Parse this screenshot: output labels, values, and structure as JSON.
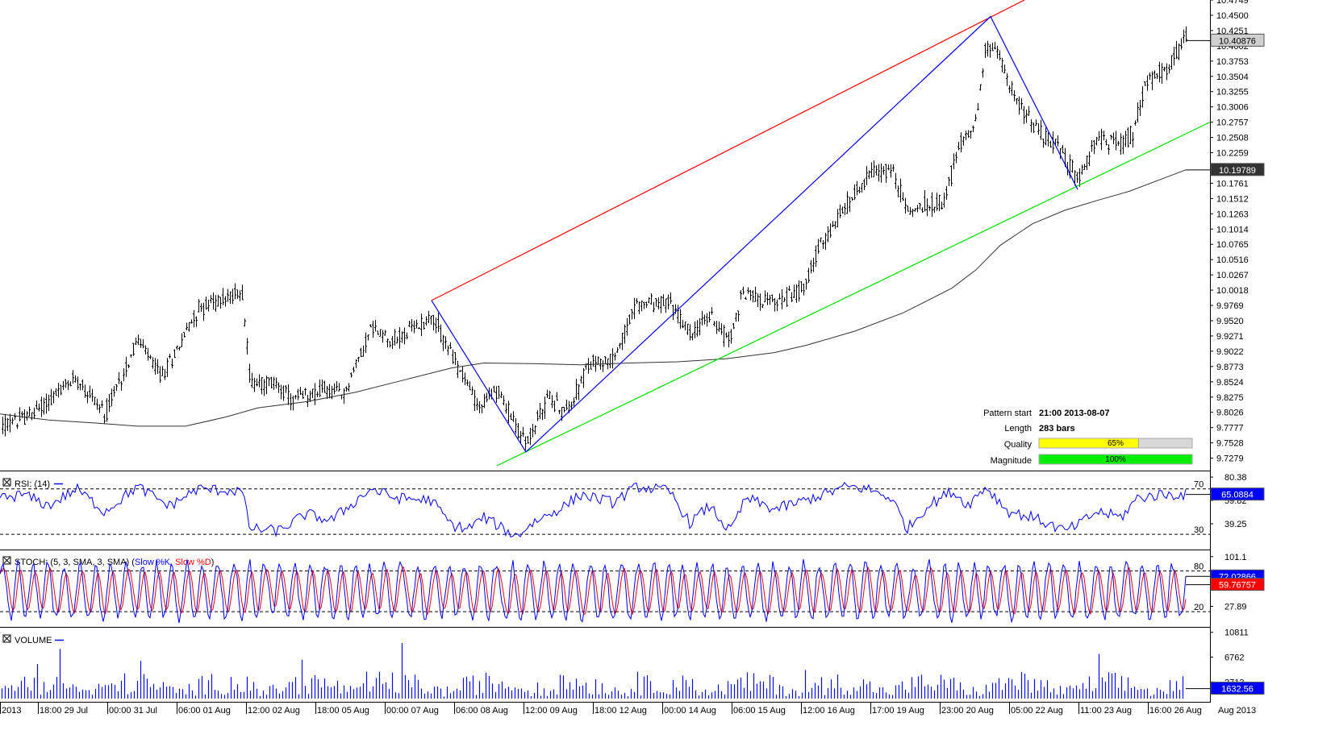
{
  "chart_data": {
    "type": "candlestick",
    "price_panel": {
      "y_ticks": [
        "10.4749",
        "10.4500",
        "10.4251",
        "10.4002",
        "10.3753",
        "10.3504",
        "10.3255",
        "10.3006",
        "10.2757",
        "10.2508",
        "10.2259",
        "10.1761",
        "10.1512",
        "10.1263",
        "10.1014",
        "10.0765",
        "10.0516",
        "10.0267",
        "10.0018",
        "9.9769",
        "9.9520",
        "9.9271",
        "9.9022",
        "9.8773",
        "9.8524",
        "9.8275",
        "9.8026",
        "9.7777",
        "9.7528",
        "9.7279"
      ],
      "ylim": [
        9.7155,
        10.4749
      ],
      "last_price": "10.40876",
      "ma_value": "10.19789",
      "moving_average": [
        [
          0,
          9.8
        ],
        [
          60,
          9.79
        ],
        [
          120,
          9.785
        ],
        [
          170,
          9.78
        ],
        [
          230,
          9.78
        ],
        [
          280,
          9.795
        ],
        [
          320,
          9.81
        ],
        [
          380,
          9.82
        ],
        [
          440,
          9.835
        ],
        [
          500,
          9.855
        ],
        [
          560,
          9.875
        ],
        [
          600,
          9.883
        ],
        [
          660,
          9.882
        ],
        [
          720,
          9.88
        ],
        [
          780,
          9.883
        ],
        [
          840,
          9.885
        ],
        [
          900,
          9.89
        ],
        [
          960,
          9.9
        ],
        [
          1000,
          9.912
        ],
        [
          1060,
          9.935
        ],
        [
          1120,
          9.965
        ],
        [
          1180,
          10.005
        ],
        [
          1210,
          10.035
        ],
        [
          1240,
          10.075
        ],
        [
          1280,
          10.11
        ],
        [
          1320,
          10.132
        ],
        [
          1360,
          10.148
        ],
        [
          1400,
          10.163
        ],
        [
          1440,
          10.183
        ],
        [
          1470,
          10.198
        ]
      ],
      "channel_lines": [
        {
          "color": "#ff0000",
          "from": [
            535,
            9.985
          ],
          "to": [
            1270,
            10.4749
          ]
        },
        {
          "color": "#00e000",
          "from": [
            616,
            9.7155
          ],
          "to": [
            1500,
            10.2757
          ]
        }
      ],
      "zigzag": [
        [
          535,
          9.985
        ],
        [
          652,
          9.738
        ],
        [
          1228,
          10.448
        ],
        [
          1336,
          10.166
        ]
      ],
      "candles": {
        "anchors": [
          [
            3,
            9.78
          ],
          [
            40,
            9.8
          ],
          [
            95,
            9.86
          ],
          [
            130,
            9.8
          ],
          [
            170,
            9.92
          ],
          [
            200,
            9.86
          ],
          [
            245,
            9.97
          ],
          [
            300,
            10.0
          ],
          [
            310,
            9.85
          ],
          [
            345,
            9.85
          ],
          [
            360,
            9.82
          ],
          [
            400,
            9.84
          ],
          [
            425,
            9.83
          ],
          [
            460,
            9.94
          ],
          [
            490,
            9.92
          ],
          [
            535,
            9.96
          ],
          [
            570,
            9.87
          ],
          [
            595,
            9.81
          ],
          [
            615,
            9.84
          ],
          [
            652,
            9.75
          ],
          [
            680,
            9.83
          ],
          [
            700,
            9.8
          ],
          [
            730,
            9.88
          ],
          [
            760,
            9.89
          ],
          [
            790,
            9.98
          ],
          [
            830,
            9.98
          ],
          [
            855,
            9.93
          ],
          [
            880,
            9.96
          ],
          [
            905,
            9.92
          ],
          [
            920,
            10.0
          ],
          [
            960,
            9.98
          ],
          [
            990,
            10.0
          ],
          [
            1020,
            10.08
          ],
          [
            1050,
            10.14
          ],
          [
            1075,
            10.19
          ],
          [
            1105,
            10.2
          ],
          [
            1125,
            10.13
          ],
          [
            1170,
            10.15
          ],
          [
            1190,
            10.24
          ],
          [
            1210,
            10.28
          ],
          [
            1222,
            10.4
          ],
          [
            1240,
            10.38
          ],
          [
            1260,
            10.31
          ],
          [
            1280,
            10.27
          ],
          [
            1300,
            10.25
          ],
          [
            1320,
            10.22
          ],
          [
            1336,
            10.18
          ],
          [
            1360,
            10.25
          ],
          [
            1390,
            10.24
          ],
          [
            1405,
            10.26
          ],
          [
            1420,
            10.34
          ],
          [
            1450,
            10.37
          ],
          [
            1470,
            10.41
          ]
        ]
      },
      "pattern_info": {
        "pattern_start_label": "Pattern start",
        "pattern_start_value": "21:00 2013-08-07",
        "length_label": "Length",
        "length_value": "283 bars",
        "quality_label": "Quality",
        "quality_value": 0.65,
        "quality_text": "65%",
        "magnitude_label": "Magnitude",
        "magnitude_value": 1.0,
        "magnitude_text": "100%"
      }
    },
    "rsi_panel": {
      "title": "RSI: (14)",
      "y_ticks": [
        "80.38",
        "59.82",
        "39.25"
      ],
      "levels": [
        {
          "value": 70,
          "label": "70"
        },
        {
          "value": 30,
          "label": "30"
        }
      ],
      "ylim": [
        18,
        84
      ],
      "last_value": "65.0884",
      "anchors": [
        [
          3,
          62
        ],
        [
          30,
          65
        ],
        [
          60,
          55
        ],
        [
          95,
          70
        ],
        [
          130,
          50
        ],
        [
          170,
          72
        ],
        [
          210,
          55
        ],
        [
          245,
          70
        ],
        [
          300,
          68
        ],
        [
          310,
          35
        ],
        [
          345,
          33
        ],
        [
          380,
          48
        ],
        [
          410,
          42
        ],
        [
          460,
          70
        ],
        [
          490,
          62
        ],
        [
          535,
          60
        ],
        [
          560,
          38
        ],
        [
          580,
          35
        ],
        [
          600,
          45
        ],
        [
          640,
          28
        ],
        [
          660,
          40
        ],
        [
          700,
          55
        ],
        [
          720,
          65
        ],
        [
          760,
          58
        ],
        [
          790,
          72
        ],
        [
          830,
          68
        ],
        [
          855,
          40
        ],
        [
          880,
          55
        ],
        [
          905,
          32
        ],
        [
          925,
          62
        ],
        [
          960,
          52
        ],
        [
          990,
          58
        ],
        [
          1020,
          65
        ],
        [
          1050,
          72
        ],
        [
          1075,
          70
        ],
        [
          1105,
          62
        ],
        [
          1125,
          35
        ],
        [
          1150,
          55
        ],
        [
          1180,
          68
        ],
        [
          1200,
          56
        ],
        [
          1222,
          72
        ],
        [
          1250,
          50
        ],
        [
          1280,
          45
        ],
        [
          1320,
          33
        ],
        [
          1336,
          38
        ],
        [
          1360,
          50
        ],
        [
          1390,
          45
        ],
        [
          1410,
          62
        ],
        [
          1440,
          65
        ],
        [
          1470,
          65
        ]
      ]
    },
    "stoch_panel": {
      "title_prefix": "STOCH: (5, 3, SMA, 3, SMA) (",
      "k_label": "Slow %K",
      "separator": ", ",
      "d_label": "Slow %D",
      "title_suffix": ")",
      "y_ticks": [
        "101.1",
        "27.89"
      ],
      "levels": [
        {
          "value": 80,
          "label": "80"
        },
        {
          "value": 20,
          "label": "20"
        }
      ],
      "ylim": [
        0,
        108
      ],
      "last_k": "72.02866",
      "last_d": "59.76757",
      "cycles": 78
    },
    "volume_panel": {
      "title": "VOLUME",
      "y_ticks": [
        "10811",
        "6762",
        "2713"
      ],
      "ylim": [
        0,
        11300
      ],
      "last_value": "1632.56",
      "bars": 360
    },
    "x_axis": {
      "tick_labels": [
        " 2013",
        "18:00 29 Jul",
        "00:00 31 Jul",
        "06:00 01 Aug",
        "12:00 02 Aug",
        "18:00 05 Aug",
        "00:00 07 Aug",
        "06:00 08 Aug",
        "12:00 09 Aug",
        "18:00 12 Aug",
        "00:00 14 Aug",
        "06:00 15 Aug",
        "12:00 16 Aug",
        "17:00 19 Aug",
        "23:00 20 Aug",
        "05:00 22 Aug",
        "11:00 23 Aug",
        "16:00 26 Aug"
      ],
      "right_label": "Aug 2013"
    }
  }
}
